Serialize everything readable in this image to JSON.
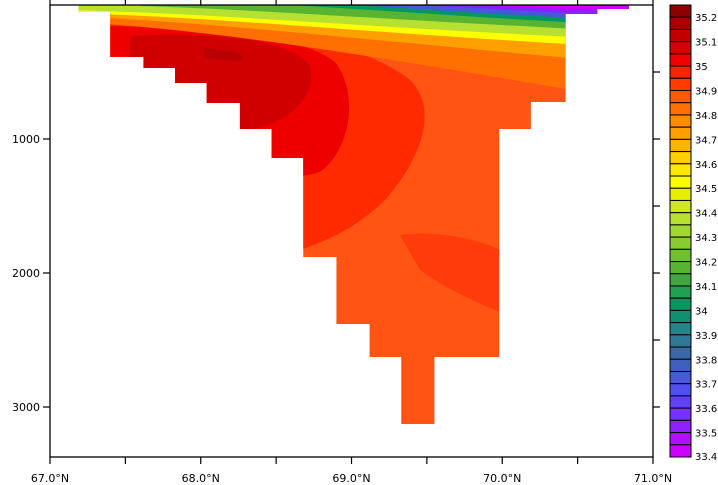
{
  "chart_data": {
    "type": "heatmap",
    "subtype": "filled-contour vertical section",
    "variable": "salinity",
    "title": "",
    "xlabel": "",
    "ylabel": "",
    "xlim": [
      67.0,
      71.0
    ],
    "ylim": [
      0,
      3370
    ],
    "y_inverted": true,
    "x_ticks": [
      {
        "value": 67.0,
        "label": "67.0°N"
      },
      {
        "value": 68.0,
        "label": "68.0°N"
      },
      {
        "value": 69.0,
        "label": "69.0°N"
      },
      {
        "value": 70.0,
        "label": "70.0°N"
      },
      {
        "value": 71.0,
        "label": "71.0°N"
      }
    ],
    "x_minor_ticks": [
      67.5,
      68.5,
      69.5,
      70.5
    ],
    "y_ticks": [
      {
        "value": 1000,
        "label": "1000"
      },
      {
        "value": 2000,
        "label": "2000"
      },
      {
        "value": 3000,
        "label": "3000"
      }
    ],
    "y_minor_ticks": [
      500,
      1500,
      2500
    ],
    "grid": false,
    "bottom_profile": [
      [
        67.19,
        67.4,
        52
      ],
      [
        67.4,
        67.62,
        388
      ],
      [
        67.62,
        67.83,
        470
      ],
      [
        67.83,
        68.04,
        582
      ],
      [
        68.04,
        68.26,
        731
      ],
      [
        68.26,
        68.47,
        925
      ],
      [
        68.47,
        68.68,
        1142
      ],
      [
        68.68,
        68.9,
        1881
      ],
      [
        68.9,
        69.12,
        2381
      ],
      [
        69.12,
        69.33,
        2627
      ],
      [
        69.33,
        69.55,
        3127
      ],
      [
        69.55,
        69.98,
        2627
      ],
      [
        69.98,
        70.19,
        925
      ],
      [
        70.19,
        70.42,
        724
      ],
      [
        70.42,
        70.63,
        67
      ],
      [
        70.63,
        70.84,
        30
      ]
    ],
    "field_summary": {
      "max_core": {
        "value": 35.2,
        "lat": 68.2,
        "depth": 350
      },
      "surface_min": {
        "value": 33.4,
        "lat_range": [
          70.0,
          70.8
        ]
      },
      "deep_water_value": 34.9
    },
    "colorbar": {
      "labels": [
        "35.2",
        "35.1",
        "35",
        "34.9",
        "34.8",
        "34.7",
        "34.6",
        "34.5",
        "34.4",
        "34.3",
        "34.2",
        "34.1",
        "34",
        "33.9",
        "33.8",
        "33.7",
        "33.6",
        "33.5",
        "33.4"
      ],
      "levels_step": 0.05,
      "colors": [
        "#8c0000",
        "#a80000",
        "#c00000",
        "#d80000",
        "#f00000",
        "#ff2200",
        "#ff3c00",
        "#ff5a00",
        "#ff7000",
        "#ff8c00",
        "#ffa000",
        "#ffb400",
        "#ffd000",
        "#ffe800",
        "#ffff00",
        "#e8f000",
        "#d0e820",
        "#b8e030",
        "#a0d830",
        "#88cc30",
        "#70c030",
        "#58b430",
        "#40a840",
        "#20a050",
        "#009860",
        "#109070",
        "#208888",
        "#307898",
        "#3868a8",
        "#4060c0",
        "#4858d8",
        "#5050f0",
        "#6040f8",
        "#7830ff",
        "#9020ff",
        "#b010ff",
        "#cc00ff"
      ]
    }
  }
}
